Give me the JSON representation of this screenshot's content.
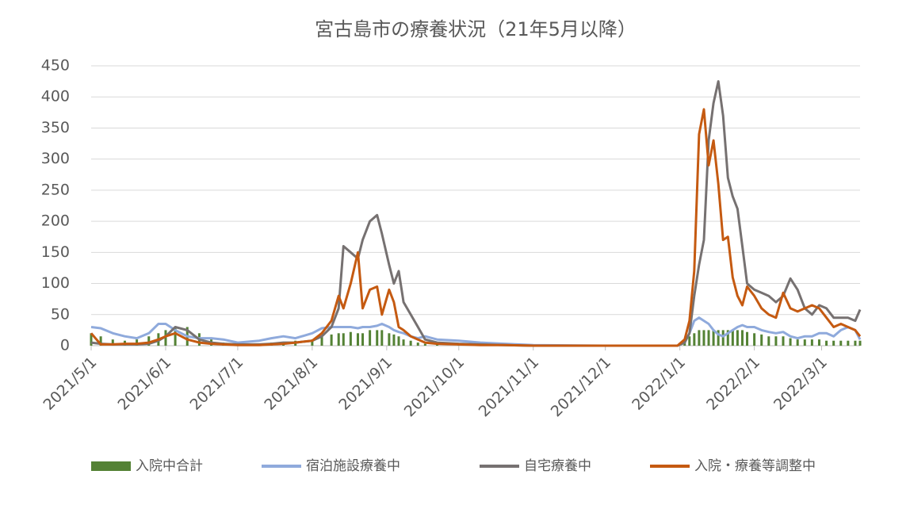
{
  "chart_data": {
    "type": "line",
    "title": "宮古島市の療養状況（21年5月以降）",
    "x": [
      "2021/5/1",
      "2021/5/5",
      "2021/5/10",
      "2021/5/15",
      "2021/5/20",
      "2021/5/25",
      "2021/5/29",
      "2021/6/1",
      "2021/6/5",
      "2021/6/10",
      "2021/6/15",
      "2021/6/20",
      "2021/6/25",
      "2021/7/1",
      "2021/7/10",
      "2021/7/15",
      "2021/7/20",
      "2021/7/25",
      "2021/8/1",
      "2021/8/5",
      "2021/8/9",
      "2021/8/12",
      "2021/8/14",
      "2021/8/17",
      "2021/8/20",
      "2021/8/22",
      "2021/8/25",
      "2021/8/28",
      "2021/8/30",
      "2021/9/2",
      "2021/9/4",
      "2021/9/6",
      "2021/9/8",
      "2021/9/11",
      "2021/9/14",
      "2021/9/17",
      "2021/9/22",
      "2021/10/1",
      "2021/10/10",
      "2021/10/20",
      "2021/11/1",
      "2021/12/1",
      "2021/12/31",
      "2022/1/3",
      "2022/1/5",
      "2022/1/7",
      "2022/1/9",
      "2022/1/11",
      "2022/1/13",
      "2022/1/15",
      "2022/1/17",
      "2022/1/19",
      "2022/1/21",
      "2022/1/23",
      "2022/1/25",
      "2022/1/27",
      "2022/1/29",
      "2022/2/1",
      "2022/2/4",
      "2022/2/7",
      "2022/2/10",
      "2022/2/13",
      "2022/2/16",
      "2022/2/19",
      "2022/2/22",
      "2022/2/25",
      "2022/2/28",
      "2022/3/3",
      "2022/3/6",
      "2022/3/9",
      "2022/3/12",
      "2022/3/15",
      "2022/3/17"
    ],
    "series": [
      {
        "name": "入院中合計",
        "kind": "bar",
        "color": "#548235",
        "values": [
          20,
          15,
          10,
          8,
          10,
          15,
          20,
          25,
          30,
          30,
          20,
          10,
          5,
          3,
          3,
          5,
          5,
          8,
          10,
          15,
          18,
          20,
          20,
          22,
          20,
          20,
          25,
          25,
          25,
          20,
          18,
          15,
          10,
          8,
          5,
          3,
          2,
          1,
          1,
          0,
          0,
          0,
          0,
          5,
          15,
          20,
          25,
          25,
          25,
          25,
          25,
          25,
          25,
          25,
          25,
          25,
          22,
          20,
          18,
          15,
          15,
          15,
          12,
          10,
          10,
          10,
          10,
          8,
          8,
          8,
          8,
          8,
          8
        ]
      },
      {
        "name": "宿泊施設療養中",
        "kind": "line",
        "color": "#8faadc",
        "values": [
          30,
          28,
          20,
          15,
          12,
          20,
          35,
          35,
          25,
          15,
          12,
          12,
          10,
          5,
          8,
          12,
          15,
          12,
          20,
          28,
          30,
          30,
          30,
          30,
          28,
          30,
          30,
          32,
          35,
          30,
          25,
          22,
          20,
          15,
          12,
          15,
          10,
          8,
          5,
          3,
          1,
          0,
          0,
          5,
          20,
          40,
          45,
          40,
          35,
          25,
          18,
          15,
          20,
          25,
          30,
          33,
          30,
          30,
          25,
          22,
          20,
          22,
          15,
          12,
          15,
          15,
          20,
          20,
          15,
          25,
          30,
          25,
          10
        ]
      },
      {
        "name": "自宅療養中",
        "kind": "line",
        "color": "#767171",
        "values": [
          5,
          3,
          2,
          2,
          2,
          3,
          8,
          15,
          30,
          25,
          10,
          5,
          3,
          2,
          2,
          3,
          5,
          5,
          8,
          15,
          30,
          60,
          160,
          150,
          140,
          170,
          200,
          210,
          180,
          130,
          100,
          120,
          70,
          50,
          30,
          10,
          5,
          3,
          2,
          1,
          0,
          0,
          0,
          5,
          20,
          80,
          130,
          170,
          330,
          390,
          425,
          370,
          270,
          240,
          220,
          160,
          100,
          90,
          85,
          80,
          70,
          80,
          108,
          90,
          60,
          50,
          65,
          60,
          45,
          45,
          45,
          40,
          58
        ]
      },
      {
        "name": "入院・療養等調整中",
        "kind": "line",
        "color": "#c55a11",
        "values": [
          20,
          2,
          2,
          3,
          3,
          5,
          10,
          15,
          20,
          10,
          5,
          3,
          2,
          1,
          1,
          2,
          3,
          5,
          8,
          20,
          40,
          80,
          60,
          100,
          150,
          60,
          90,
          95,
          50,
          90,
          70,
          30,
          25,
          15,
          10,
          5,
          3,
          2,
          1,
          1,
          0,
          0,
          0,
          10,
          40,
          120,
          340,
          380,
          290,
          330,
          260,
          170,
          175,
          110,
          80,
          65,
          95,
          80,
          60,
          50,
          45,
          85,
          60,
          55,
          60,
          65,
          60,
          45,
          30,
          35,
          30,
          25,
          15
        ]
      }
    ],
    "xlim": [
      "2021/5/1",
      "2022/3/17"
    ],
    "xticks": [
      "2021/5/1",
      "2021/6/1",
      "2021/7/1",
      "2021/8/1",
      "2021/9/1",
      "2021/10/1",
      "2021/11/1",
      "2021/12/1",
      "2022/1/1",
      "2022/2/1",
      "2022/3/1"
    ],
    "ylim": [
      0,
      450
    ],
    "yticks": [
      0,
      50,
      100,
      150,
      200,
      250,
      300,
      350,
      400,
      450
    ],
    "grid": true
  }
}
